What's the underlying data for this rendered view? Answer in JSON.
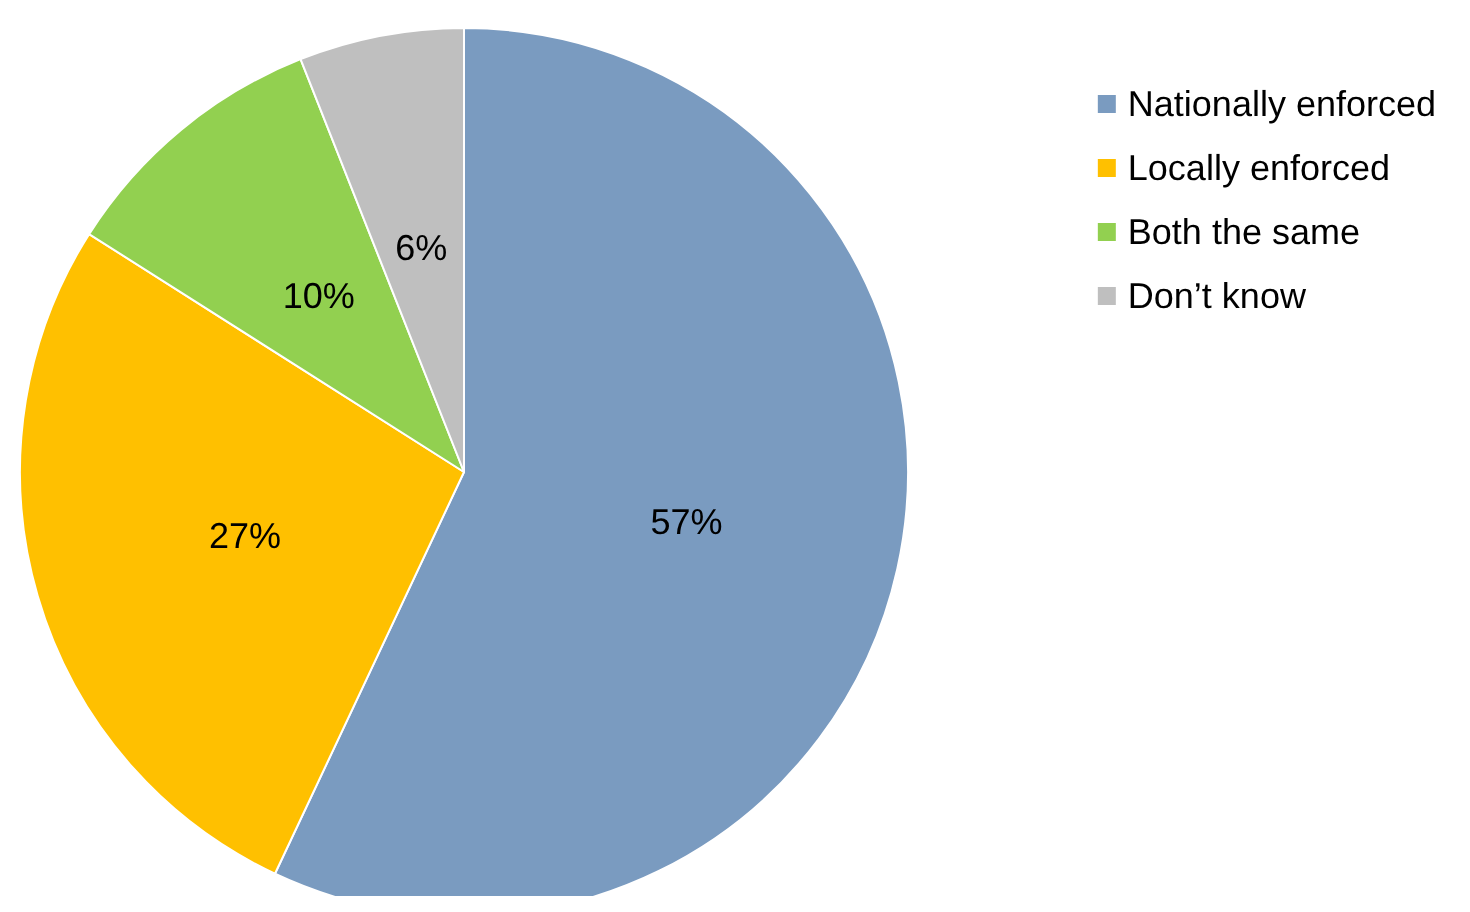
{
  "chart_data": {
    "type": "pie",
    "categories": [
      "Nationally enforced",
      "Locally enforced",
      "Both the same",
      "Don’t know"
    ],
    "values": [
      57,
      27,
      10,
      6
    ],
    "value_labels": [
      "57%",
      "27%",
      "10%",
      "6%"
    ],
    "colors": [
      "#7a9bc0",
      "#ffc000",
      "#92d050",
      "#bfbfbf"
    ],
    "legend": "top right"
  }
}
